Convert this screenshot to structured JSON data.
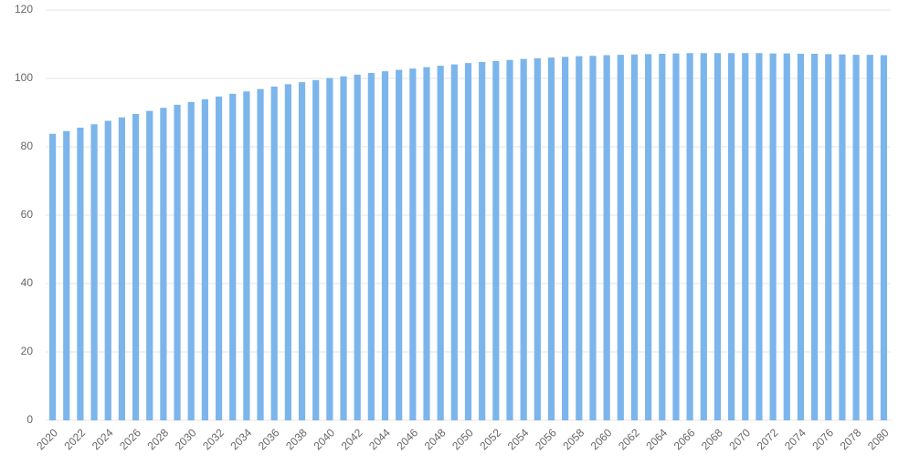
{
  "chart_data": {
    "type": "bar",
    "categories": [
      "2020",
      null,
      "2022",
      null,
      "2024",
      null,
      "2026",
      null,
      "2028",
      null,
      "2030",
      null,
      "2032",
      null,
      "2034",
      null,
      "2036",
      null,
      "2038",
      null,
      "2040",
      null,
      "2042",
      null,
      "2044",
      null,
      "2046",
      null,
      "2048",
      null,
      "2050",
      null,
      "2052",
      null,
      "2054",
      null,
      "2056",
      null,
      "2058",
      null,
      "2060",
      null,
      "2062",
      null,
      "2064",
      null,
      "2066",
      null,
      "2068",
      null,
      "2070",
      null,
      "2072",
      null,
      "2074",
      null,
      "2076",
      null,
      "2078",
      null,
      "2080"
    ],
    "values": [
      83.8,
      84.6,
      85.6,
      86.6,
      87.6,
      88.6,
      89.6,
      90.5,
      91.4,
      92.3,
      93.1,
      93.9,
      94.7,
      95.5,
      96.2,
      96.9,
      97.6,
      98.3,
      98.9,
      99.5,
      100.1,
      100.6,
      101.1,
      101.6,
      102.1,
      102.5,
      102.9,
      103.3,
      103.7,
      104.1,
      104.5,
      104.8,
      105.1,
      105.4,
      105.7,
      105.9,
      106.1,
      106.3,
      106.5,
      106.6,
      106.8,
      106.9,
      107.0,
      107.1,
      107.2,
      107.3,
      107.4,
      107.4,
      107.4,
      107.4,
      107.4,
      107.4,
      107.3,
      107.3,
      107.2,
      107.2,
      107.1,
      107.0,
      106.9,
      106.9,
      106.8
    ],
    "color": "#7cb5ec",
    "ylim": [
      0,
      120
    ],
    "yticks": [
      0,
      20,
      40,
      60,
      80,
      100,
      120
    ],
    "grid": true
  }
}
